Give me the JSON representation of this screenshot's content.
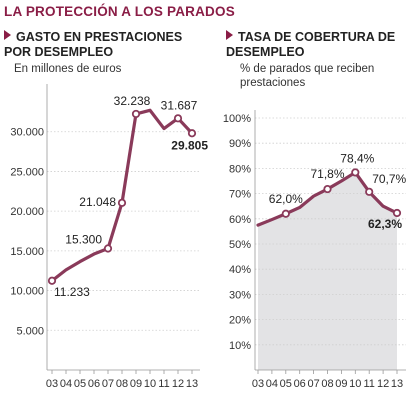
{
  "header": {
    "title": "LA PROTECCIÓN A LOS PARADOS"
  },
  "colors": {
    "accent": "#8a1d46",
    "line": "#8a3a5a",
    "area": "#e3e3e5",
    "grid": "#cfcfcf"
  },
  "chart_data": [
    {
      "type": "line",
      "title": "GASTO EN PRESTACIONES POR DESEMPLEO",
      "subtitle": "En millones de euros",
      "categories": [
        "03",
        "04",
        "05",
        "06",
        "07",
        "08",
        "09",
        "10",
        "11",
        "12",
        "13"
      ],
      "values": [
        11233,
        12600,
        13650,
        14600,
        15300,
        21048,
        32238,
        32700,
        30400,
        31687,
        29805
      ],
      "labels": [
        {
          "index": 0,
          "text": "11.233",
          "bold": false
        },
        {
          "index": 4,
          "text": "15.300",
          "bold": false
        },
        {
          "index": 5,
          "text": "21.048",
          "bold": false
        },
        {
          "index": 6,
          "text": "32.238",
          "bold": false
        },
        {
          "index": 9,
          "text": "31.687",
          "bold": false
        },
        {
          "index": 10,
          "text": "29.805",
          "bold": true
        }
      ],
      "yticks": [
        "5.000",
        "10.000",
        "15.000",
        "20.000",
        "25.000",
        "30.000"
      ],
      "ylim": [
        0,
        35000
      ],
      "grid": true
    },
    {
      "type": "area",
      "title": "TASA DE COBERTURA DE DESEMPLEO",
      "subtitle": "% de parados que reciben prestaciones",
      "categories": [
        "03",
        "04",
        "05",
        "06",
        "07",
        "08",
        "09",
        "10",
        "11",
        "12",
        "13"
      ],
      "values": [
        57.5,
        59.7,
        62.0,
        64.5,
        69.0,
        71.8,
        75.0,
        78.4,
        70.7,
        65.0,
        62.3
      ],
      "labels": [
        {
          "index": 2,
          "text": "62,0%",
          "bold": false
        },
        {
          "index": 5,
          "text": "71,8%",
          "bold": false
        },
        {
          "index": 7,
          "text": "78,4%",
          "bold": false
        },
        {
          "index": 8,
          "text": "70,7%",
          "bold": false
        },
        {
          "index": 10,
          "text": "62,3%",
          "bold": true
        }
      ],
      "yticks": [
        "10%",
        "20%",
        "30%",
        "40%",
        "50%",
        "60%",
        "70%",
        "80%",
        "90%",
        "100%"
      ],
      "ylim": [
        0,
        100
      ],
      "grid": true
    }
  ]
}
